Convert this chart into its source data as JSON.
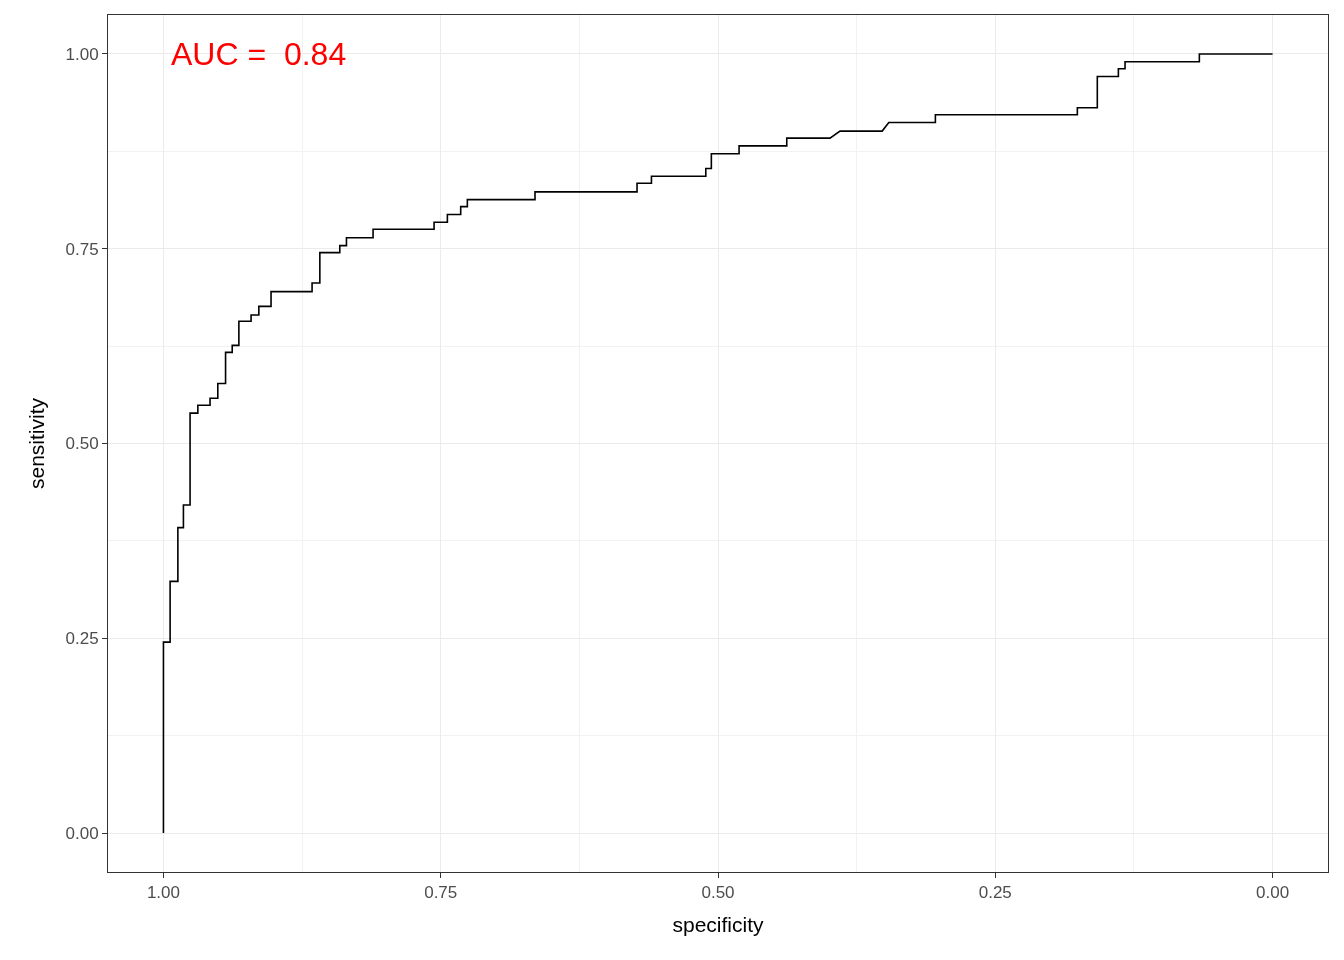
{
  "chart_data": {
    "type": "line",
    "xlabel": "specificity",
    "ylabel": "sensitivity",
    "annotations": [
      "AUC =  0.84"
    ],
    "x": [
      1.0,
      1.0,
      0.994,
      0.994,
      0.987,
      0.987,
      0.982,
      0.982,
      0.976,
      0.976,
      0.969,
      0.969,
      0.958,
      0.958,
      0.951,
      0.951,
      0.944,
      0.944,
      0.938,
      0.938,
      0.932,
      0.932,
      0.921,
      0.921,
      0.914,
      0.914,
      0.903,
      0.903,
      0.866,
      0.866,
      0.859,
      0.859,
      0.841,
      0.841,
      0.835,
      0.835,
      0.811,
      0.811,
      0.756,
      0.756,
      0.744,
      0.744,
      0.732,
      0.732,
      0.726,
      0.726,
      0.665,
      0.665,
      0.573,
      0.573,
      0.56,
      0.56,
      0.511,
      0.511,
      0.506,
      0.506,
      0.481,
      0.481,
      0.438,
      0.438,
      0.399,
      0.39,
      0.352,
      0.346,
      0.304,
      0.304,
      0.176,
      0.176,
      0.158,
      0.158,
      0.139,
      0.139,
      0.133,
      0.133,
      0.066,
      0.066,
      0.0
    ],
    "series": [
      {
        "color": "#000000",
        "values": [
          0.0,
          0.245,
          0.245,
          0.323,
          0.323,
          0.392,
          0.392,
          0.421,
          0.421,
          0.539,
          0.539,
          0.549,
          0.549,
          0.558,
          0.558,
          0.577,
          0.577,
          0.617,
          0.617,
          0.626,
          0.626,
          0.657,
          0.657,
          0.665,
          0.665,
          0.676,
          0.676,
          0.695,
          0.695,
          0.706,
          0.706,
          0.745,
          0.745,
          0.754,
          0.754,
          0.764,
          0.764,
          0.775,
          0.775,
          0.784,
          0.784,
          0.794,
          0.794,
          0.804,
          0.804,
          0.813,
          0.813,
          0.823,
          0.823,
          0.834,
          0.834,
          0.843,
          0.843,
          0.853,
          0.853,
          0.872,
          0.872,
          0.882,
          0.882,
          0.892,
          0.892,
          0.901,
          0.901,
          0.912,
          0.912,
          0.922,
          0.922,
          0.931,
          0.931,
          0.971,
          0.971,
          0.981,
          0.981,
          0.99,
          0.99,
          1.0,
          1.0
        ]
      }
    ],
    "xlim": [
      1.05,
      -0.05
    ],
    "ylim": [
      -0.05,
      1.05
    ],
    "xticks": [
      {
        "value": 1,
        "label": "1.00"
      },
      {
        "value": 0.75,
        "label": "0.75"
      },
      {
        "value": 0.5,
        "label": "0.50"
      },
      {
        "value": 0.25,
        "label": "0.25"
      },
      {
        "value": 0,
        "label": "0.00"
      }
    ],
    "yticks": [
      {
        "value": 0,
        "label": "0.00"
      },
      {
        "value": 0.25,
        "label": "0.25"
      },
      {
        "value": 0.5,
        "label": "0.50"
      },
      {
        "value": 0.75,
        "label": "0.75"
      },
      {
        "value": 1,
        "label": "1.00"
      }
    ],
    "grid": true,
    "line_style": "solid",
    "marker": "none"
  }
}
